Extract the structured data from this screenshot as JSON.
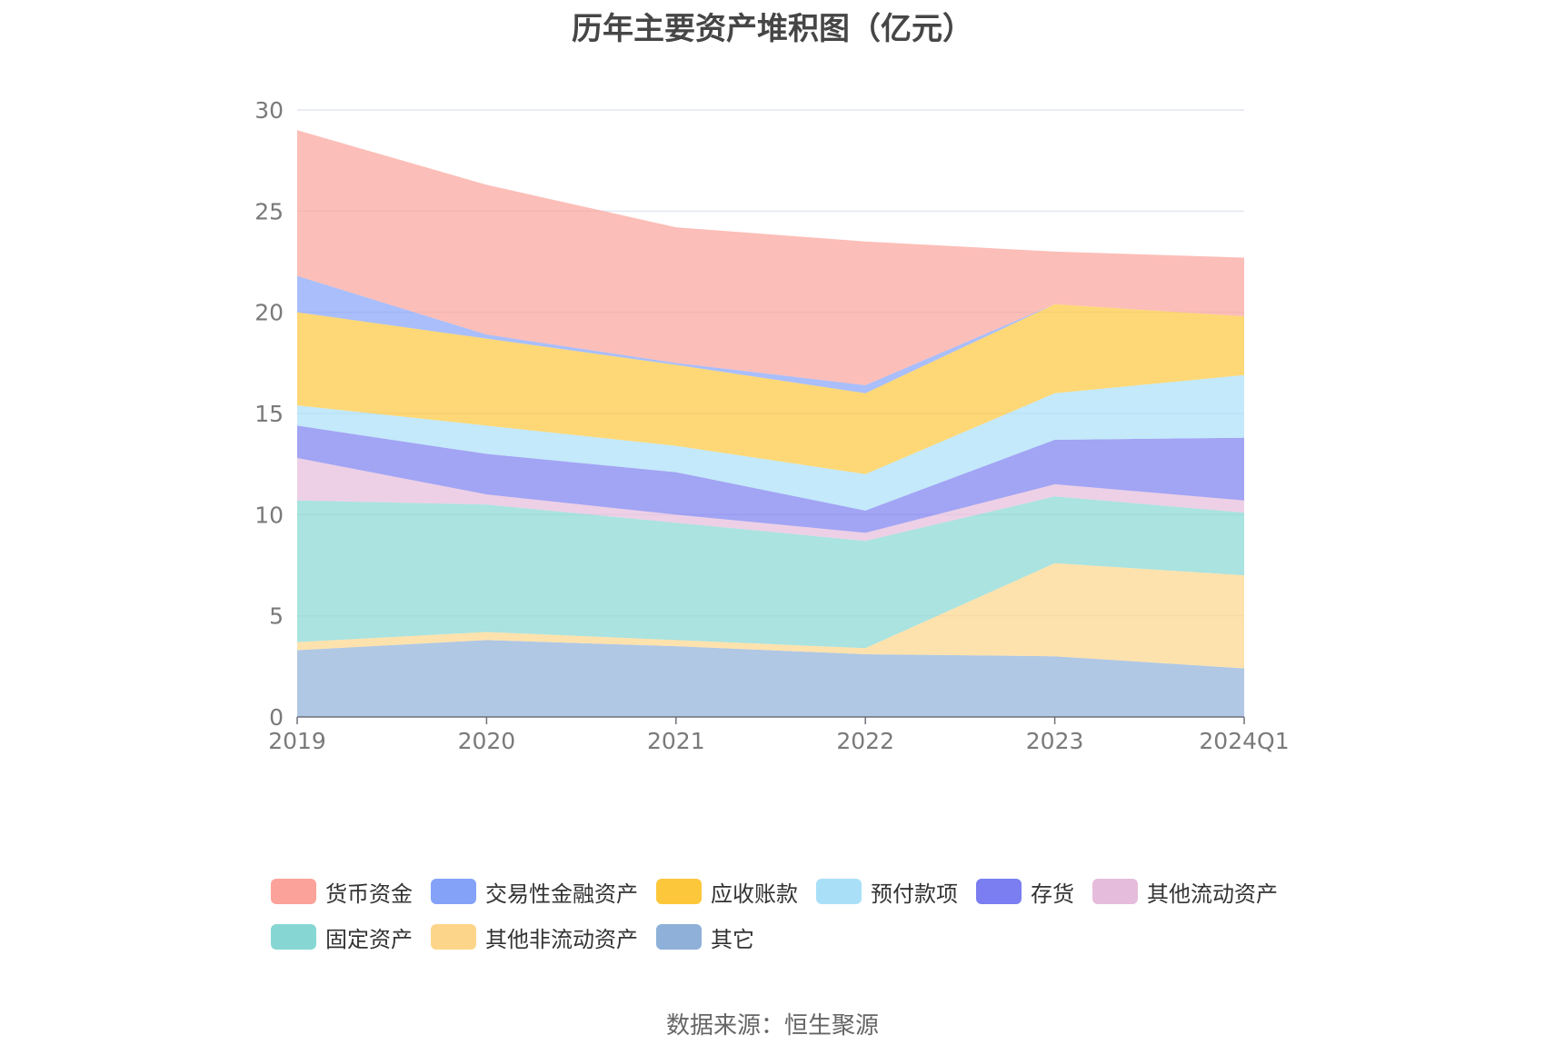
{
  "chart_data": {
    "type": "area",
    "stacked": true,
    "title": "历年主要资产堆积图（亿元）",
    "categories": [
      "2019",
      "2020",
      "2021",
      "2022",
      "2023",
      "2024Q1"
    ],
    "ylim": [
      0,
      30
    ],
    "yticks": [
      0,
      5,
      10,
      15,
      20,
      25,
      30
    ],
    "grid": true,
    "legend_position": "bottom",
    "series": [
      {
        "name": "其它",
        "color": "#8eb0d9",
        "values": [
          3.3,
          3.8,
          3.5,
          3.1,
          3.0,
          2.4
        ]
      },
      {
        "name": "其他非流动资产",
        "color": "#fdd58a",
        "values": [
          0.4,
          0.4,
          0.3,
          0.3,
          4.6,
          4.6
        ]
      },
      {
        "name": "固定资产",
        "color": "#86d7d3",
        "values": [
          7.0,
          6.3,
          5.8,
          5.3,
          3.3,
          3.1
        ]
      },
      {
        "name": "其他流动资产",
        "color": "#e5bcdb",
        "values": [
          2.1,
          0.5,
          0.4,
          0.4,
          0.6,
          0.6
        ]
      },
      {
        "name": "存货",
        "color": "#7a7ef0",
        "values": [
          1.6,
          2.0,
          2.1,
          1.1,
          2.2,
          3.1
        ]
      },
      {
        "name": "预付款项",
        "color": "#a9e0f8",
        "values": [
          1.0,
          1.4,
          1.3,
          1.8,
          2.3,
          3.1
        ]
      },
      {
        "name": "应收账款",
        "color": "#fdc73c",
        "values": [
          4.6,
          4.3,
          4.0,
          4.0,
          4.4,
          2.9
        ]
      },
      {
        "name": "交易性金融资产",
        "color": "#84a3f8",
        "values": [
          1.8,
          0.2,
          0.1,
          0.4,
          0.0,
          0.0
        ]
      },
      {
        "name": "货币资金",
        "color": "#fba29a",
        "values": [
          7.2,
          7.4,
          6.7,
          7.1,
          2.6,
          2.9
        ]
      }
    ]
  },
  "legend_order": [
    [
      "货币资金",
      "交易性金融资产",
      "应收账款",
      "预付款项",
      "存货",
      "其他流动资产"
    ],
    [
      "固定资产",
      "其他非流动资产",
      "其它"
    ]
  ],
  "source": "数据来源：恒生聚源"
}
